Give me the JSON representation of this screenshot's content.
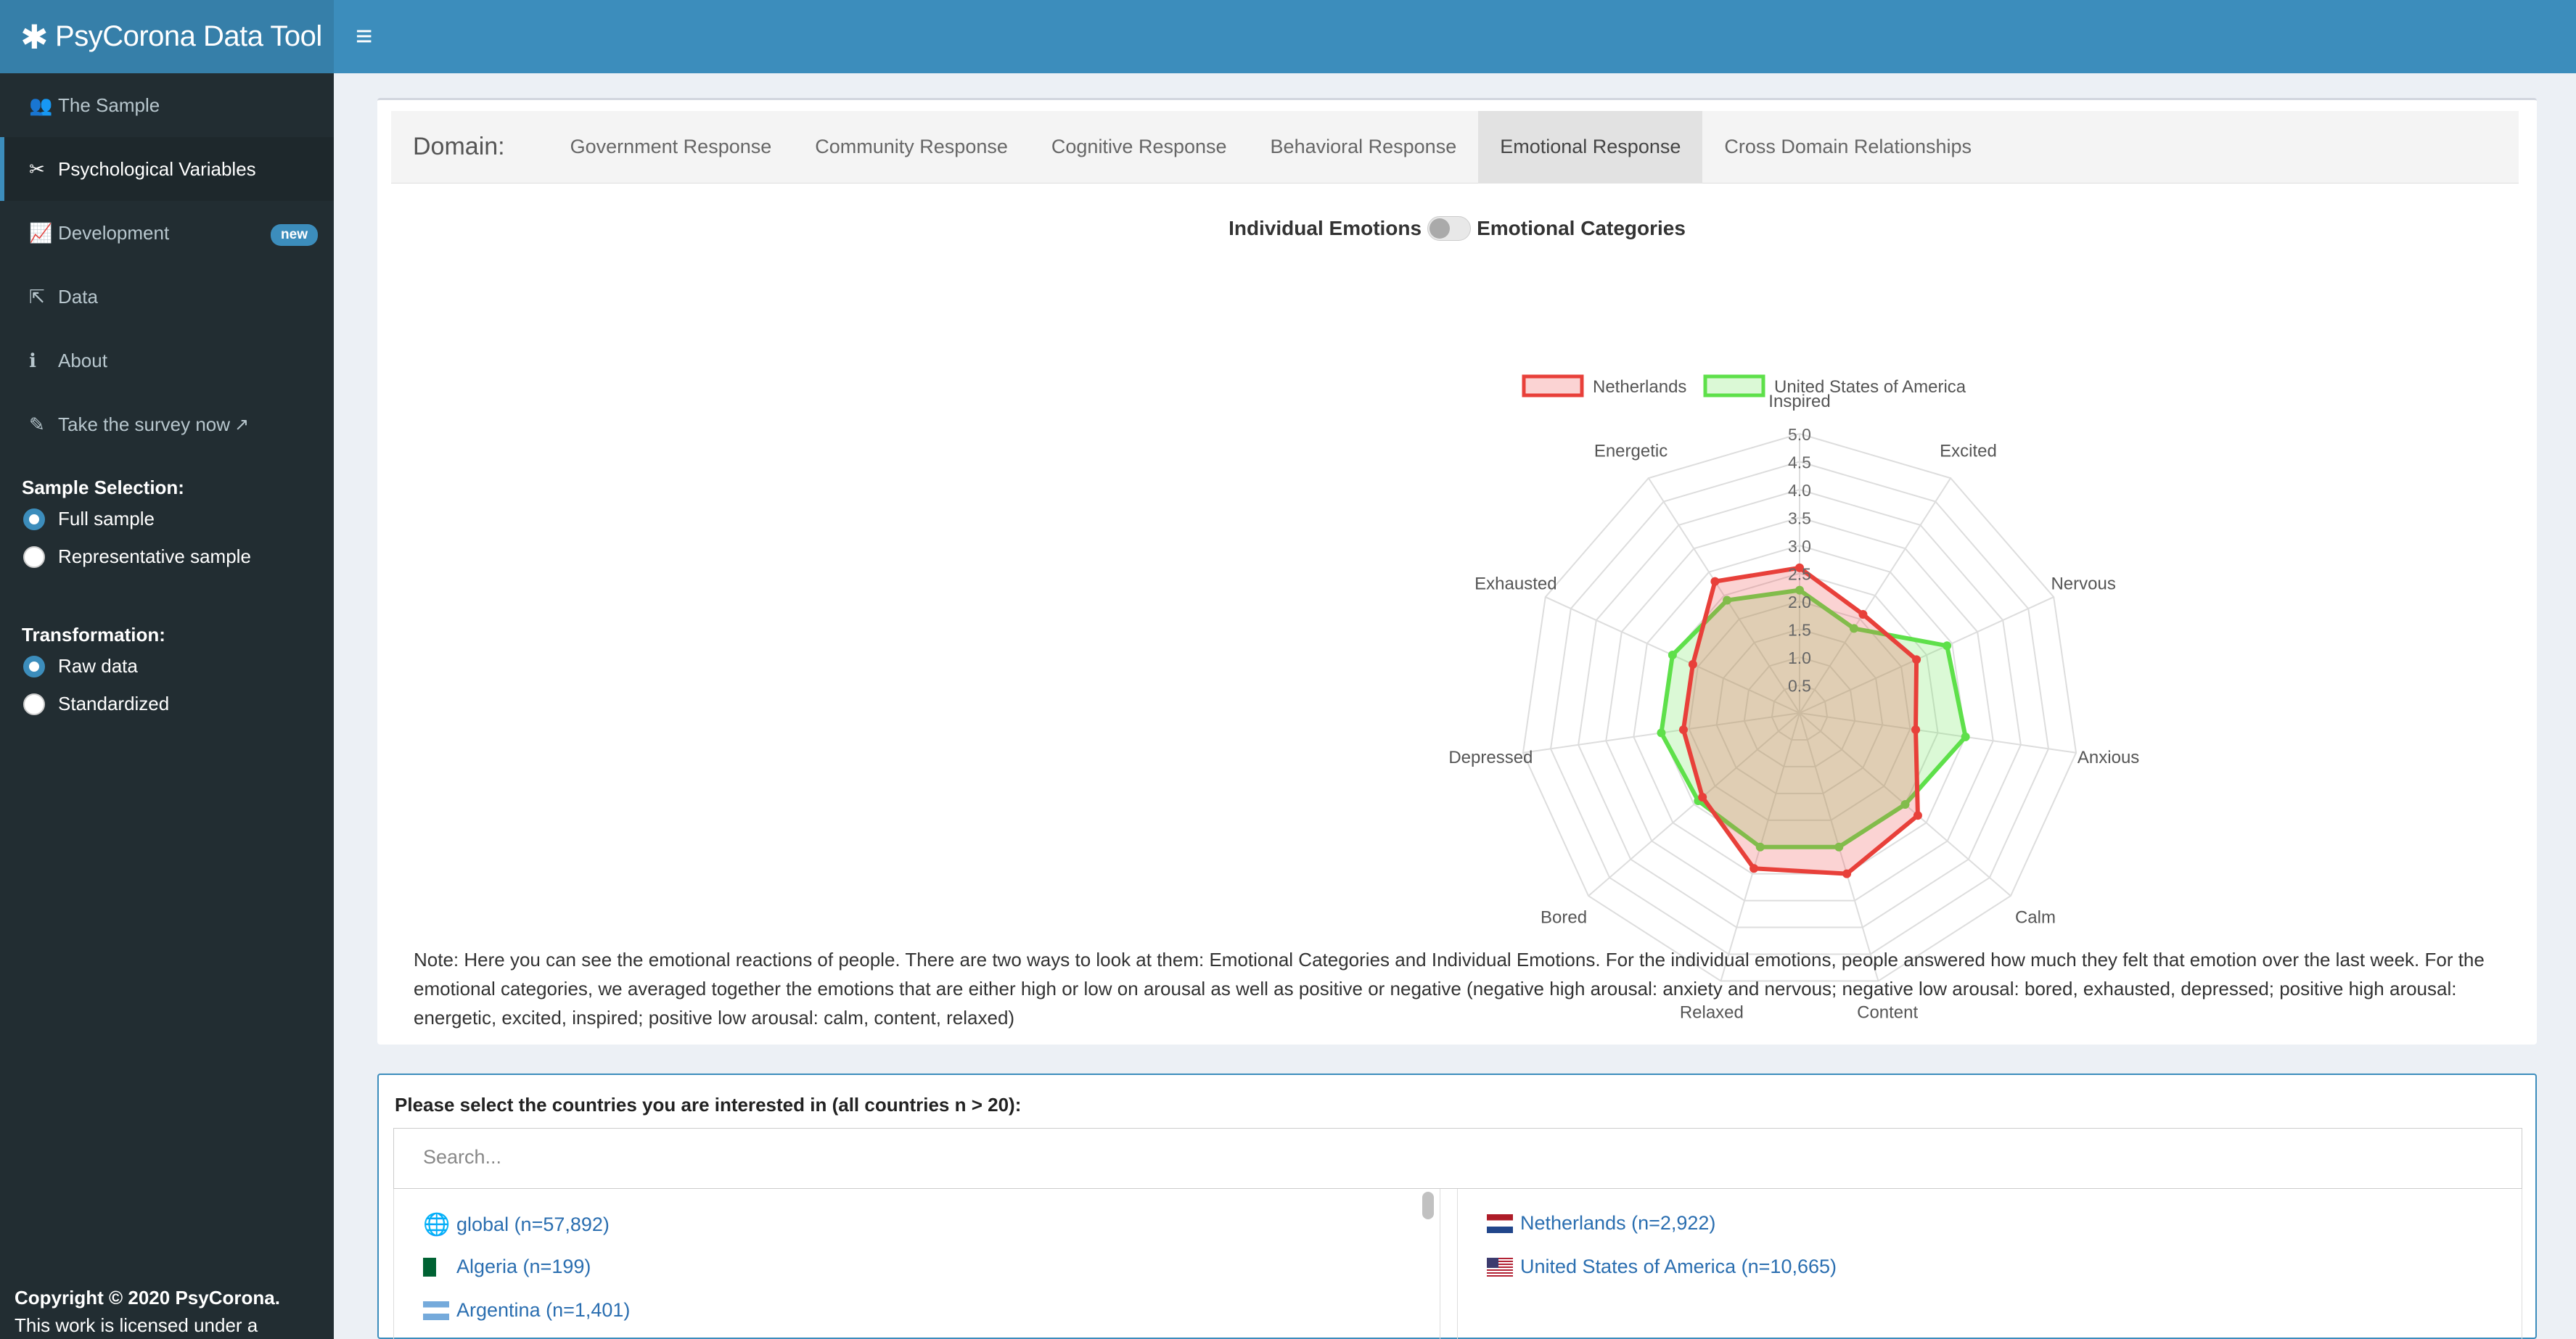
{
  "app": {
    "title": "PsyCorona Data Tool"
  },
  "sidebar": {
    "items": [
      {
        "label": "The Sample",
        "icon": "users-icon"
      },
      {
        "label": "Psychological Variables",
        "icon": "tools-icon"
      },
      {
        "label": "Development",
        "icon": "line-chart-icon",
        "badge": "new"
      },
      {
        "label": "Data",
        "icon": "share-icon"
      },
      {
        "label": "About",
        "icon": "info-icon"
      },
      {
        "label": "Take the survey now",
        "icon": "edit-icon"
      }
    ],
    "sample_selection": {
      "heading": "Sample Selection:",
      "options": [
        "Full sample",
        "Representative sample"
      ],
      "selected": "Full sample"
    },
    "transformation": {
      "heading": "Transformation:",
      "options": [
        "Raw data",
        "Standardized"
      ],
      "selected": "Raw data"
    },
    "copyright": {
      "prefix": "Copyright © 2020 ",
      "org": "PsyCorona",
      "suffix": ".",
      "line2": "This work is licensed under a"
    }
  },
  "domain": {
    "label": "Domain:",
    "tabs": [
      "Government Response",
      "Community Response",
      "Cognitive Response",
      "Behavioral Response",
      "Emotional Response",
      "Cross Domain Relationships"
    ],
    "active": "Emotional Response"
  },
  "toggle": {
    "left": "Individual Emotions",
    "right": "Emotional Categories"
  },
  "colors": {
    "netherlands": "#e8403a",
    "usa": "#5ee04a",
    "accent": "#3c8dbc"
  },
  "chart_data": {
    "type": "radar",
    "axes": [
      "Inspired",
      "Excited",
      "Nervous",
      "Anxious",
      "Calm",
      "Content",
      "Relaxed",
      "Bored",
      "Depressed",
      "Exhausted",
      "Energetic"
    ],
    "r_ticks": [
      "0.5",
      "1.0",
      "1.5",
      "2.0",
      "2.5",
      "3.0",
      "3.5",
      "4.0",
      "4.5",
      "5.0"
    ],
    "r_max": 5,
    "series": [
      {
        "name": "Netherlands",
        "values": [
          2.6,
          2.1,
          2.3,
          2.1,
          2.8,
          3.0,
          2.9,
          2.3,
          2.1,
          2.1,
          2.8
        ]
      },
      {
        "name": "United States of America",
        "values": [
          2.2,
          1.8,
          2.9,
          3.0,
          2.5,
          2.5,
          2.5,
          2.4,
          2.5,
          2.5,
          2.4
        ]
      }
    ]
  },
  "note": "Note: Here you can see the emotional reactions of people. There are two ways to look at them: Emotional Categories and Individual Emotions. For the individual emotions, people answered how much they felt that emotion over the last week. For the emotional categories, we averaged together the emotions that are either high or low on arousal as well as positive or negative (negative high arousal: anxiety and nervous; negative low arousal: bored, exhausted, depressed; positive high arousal: energetic, excited, inspired; positive low arousal: calm, content, relaxed)",
  "countries": {
    "title": "Please select the countries you are interested in (all countries n > 20):",
    "search_placeholder": "Search...",
    "available": [
      {
        "label": "global (n=57,892)",
        "icon": "globe-icon"
      },
      {
        "label": "Algeria (n=199)",
        "icon": "algeria-flag-icon"
      },
      {
        "label": "Argentina (n=1,401)",
        "icon": "argentina-flag-icon"
      }
    ],
    "selected": [
      {
        "label": "Netherlands (n=2,922)",
        "icon": "netherlands-flag-icon"
      },
      {
        "label": "United States of America (n=10,665)",
        "icon": "usa-flag-icon"
      }
    ]
  }
}
